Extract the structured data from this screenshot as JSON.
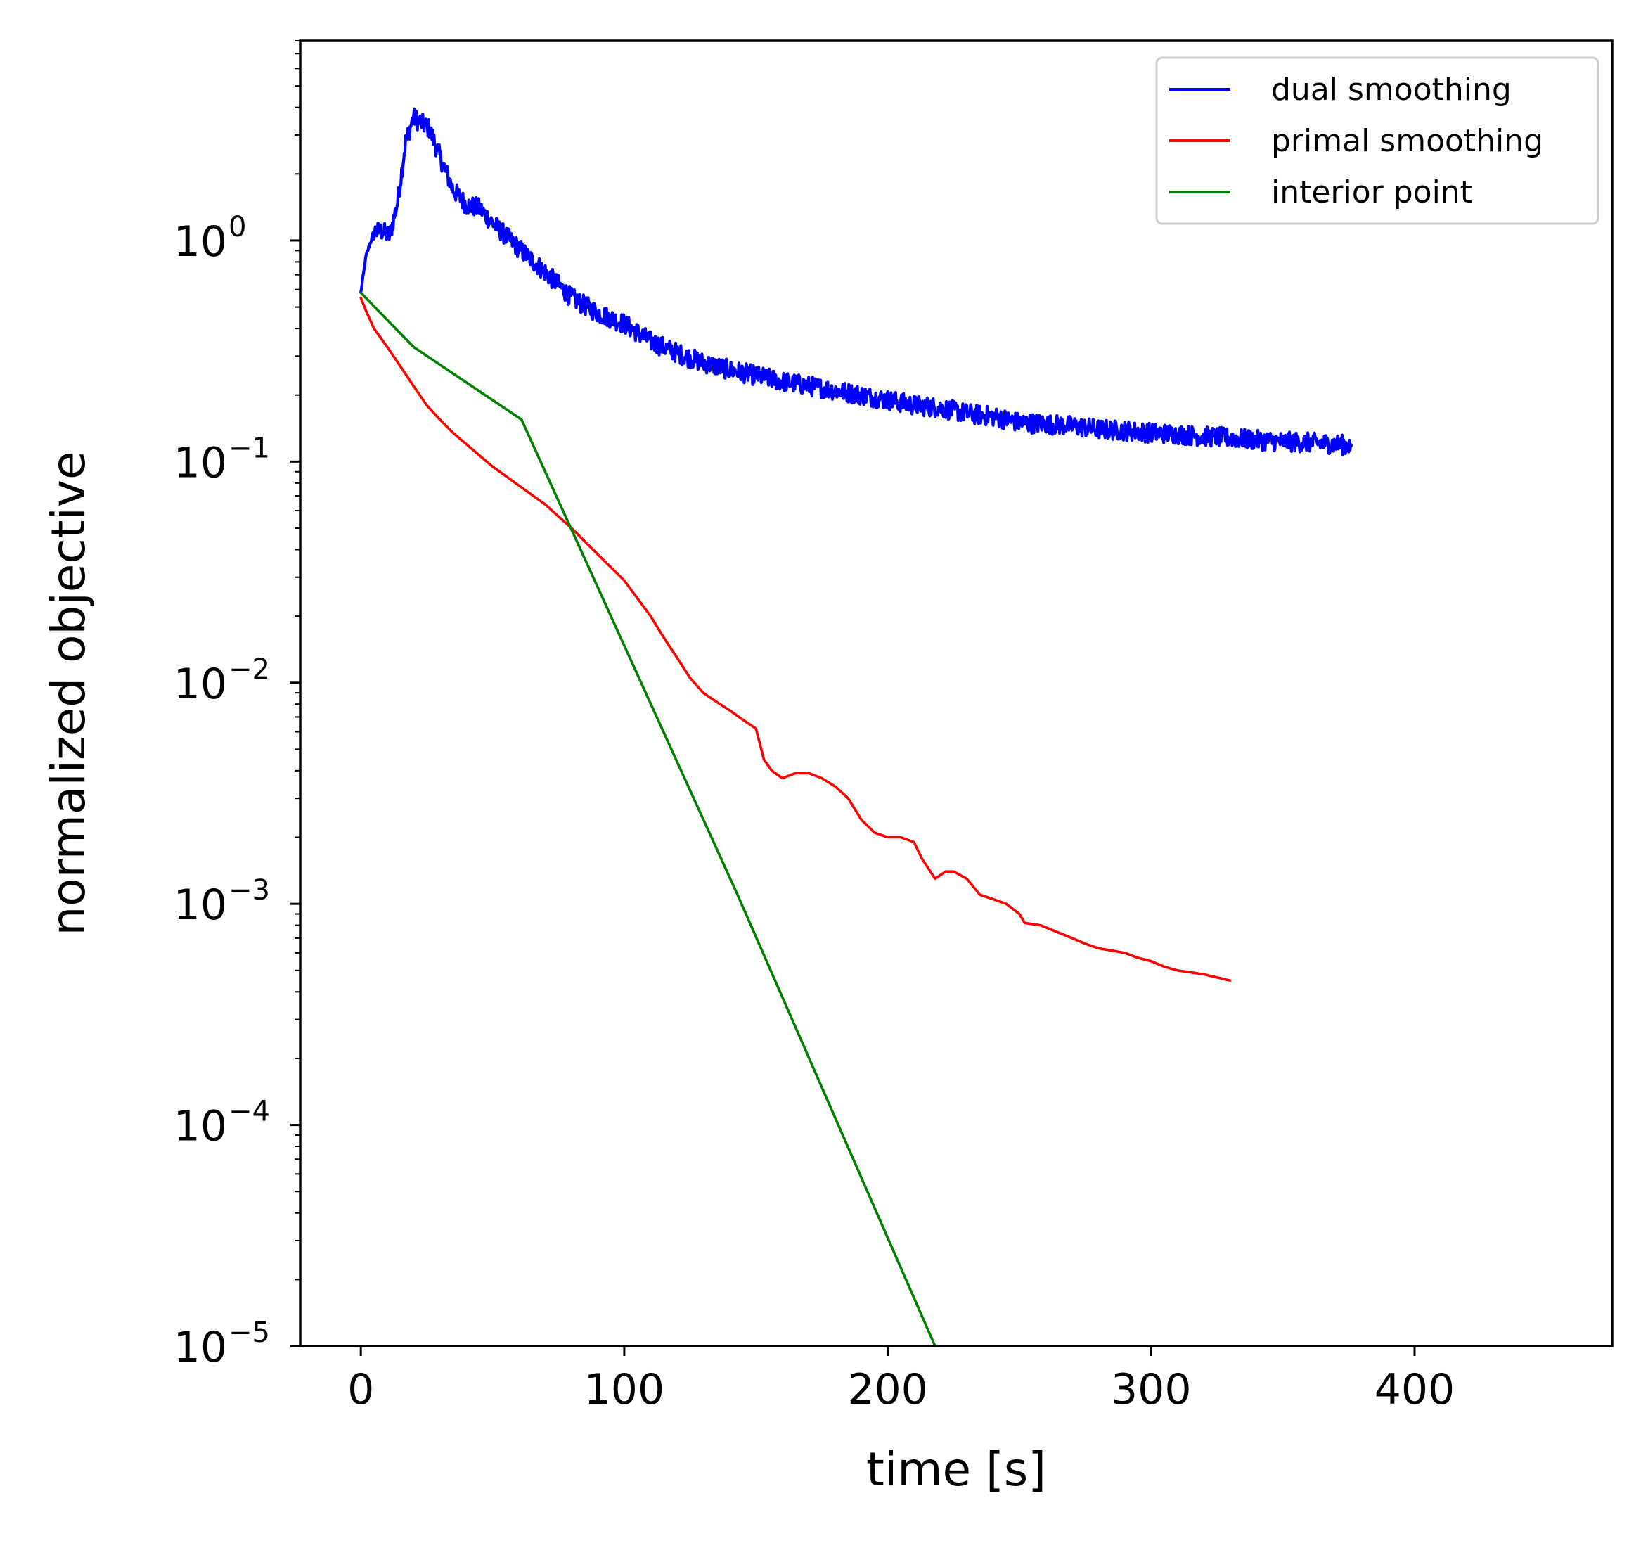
{
  "chart_data": {
    "type": "line",
    "xlabel": "time [s]",
    "ylabel": "normalized objective",
    "xlim": [
      -23,
      475
    ],
    "ylim": [
      1e-05,
      8
    ],
    "yscale": "log",
    "x_ticks": [
      {
        "value": 0,
        "label": "0"
      },
      {
        "value": 100,
        "label": "100"
      },
      {
        "value": 200,
        "label": "200"
      },
      {
        "value": 300,
        "label": "300"
      },
      {
        "value": 400,
        "label": "400"
      }
    ],
    "y_ticks": [
      {
        "value": 1,
        "base": "10",
        "exp": "0"
      },
      {
        "value": 0.1,
        "base": "10",
        "exp": "−1"
      },
      {
        "value": 0.01,
        "base": "10",
        "exp": "−2"
      },
      {
        "value": 0.001,
        "base": "10",
        "exp": "−3"
      },
      {
        "value": 0.0001,
        "base": "10",
        "exp": "−4"
      },
      {
        "value": 1e-05,
        "base": "10",
        "exp": "−5"
      }
    ],
    "grid": false,
    "legend_position": "top-right",
    "series": [
      {
        "name": "dual smoothing",
        "color": "#0000ff",
        "noisy": true,
        "x": [
          0,
          2,
          5,
          8,
          11,
          14,
          17,
          20,
          23,
          26,
          30,
          35,
          40,
          45,
          50,
          55,
          60,
          70,
          80,
          90,
          100,
          110,
          120,
          130,
          140,
          150,
          160,
          170,
          180,
          190,
          200,
          210,
          220,
          230,
          240,
          250,
          260,
          270,
          280,
          290,
          300,
          310,
          320,
          330,
          340,
          350,
          360,
          370,
          376
        ],
        "y": [
          0.58,
          0.85,
          1.1,
          1.1,
          1.05,
          1.5,
          2.8,
          3.6,
          3.4,
          3.2,
          2.4,
          1.7,
          1.45,
          1.4,
          1.2,
          1.05,
          0.92,
          0.72,
          0.55,
          0.47,
          0.42,
          0.35,
          0.31,
          0.28,
          0.26,
          0.245,
          0.23,
          0.22,
          0.21,
          0.2,
          0.19,
          0.18,
          0.175,
          0.165,
          0.16,
          0.15,
          0.148,
          0.145,
          0.14,
          0.138,
          0.135,
          0.133,
          0.13,
          0.128,
          0.125,
          0.123,
          0.122,
          0.12,
          0.118
        ]
      },
      {
        "name": "primal smoothing",
        "color": "#ff0000",
        "noisy": false,
        "x": [
          0,
          2,
          5,
          10,
          15,
          20,
          25,
          30,
          35,
          40,
          50,
          60,
          70,
          80,
          90,
          100,
          110,
          115,
          120,
          125,
          130,
          135,
          140,
          145,
          150,
          153,
          156,
          160,
          165,
          170,
          175,
          180,
          185,
          190,
          195,
          200,
          205,
          210,
          213,
          218,
          222,
          225,
          230,
          235,
          240,
          245,
          250,
          252,
          258,
          265,
          270,
          275,
          280,
          290,
          295,
          300,
          305,
          310,
          320,
          330
        ],
        "y": [
          0.55,
          0.48,
          0.4,
          0.33,
          0.27,
          0.22,
          0.18,
          0.155,
          0.135,
          0.12,
          0.095,
          0.078,
          0.064,
          0.05,
          0.038,
          0.029,
          0.02,
          0.016,
          0.013,
          0.0105,
          0.009,
          0.0082,
          0.0075,
          0.0068,
          0.0062,
          0.0045,
          0.004,
          0.0037,
          0.0039,
          0.0039,
          0.0037,
          0.0034,
          0.003,
          0.0024,
          0.0021,
          0.002,
          0.002,
          0.0019,
          0.0016,
          0.0013,
          0.0014,
          0.0014,
          0.0013,
          0.0011,
          0.00105,
          0.001,
          0.0009,
          0.00082,
          0.0008,
          0.00074,
          0.0007,
          0.00066,
          0.00063,
          0.0006,
          0.00057,
          0.00055,
          0.00052,
          0.0005,
          0.00048,
          0.00045
        ]
      },
      {
        "name": "interior point",
        "color": "#008000",
        "noisy": false,
        "x": [
          0,
          20,
          61,
          143,
          218
        ],
        "y": [
          0.58,
          0.33,
          0.155,
          0.0011,
          1e-05
        ]
      }
    ]
  }
}
